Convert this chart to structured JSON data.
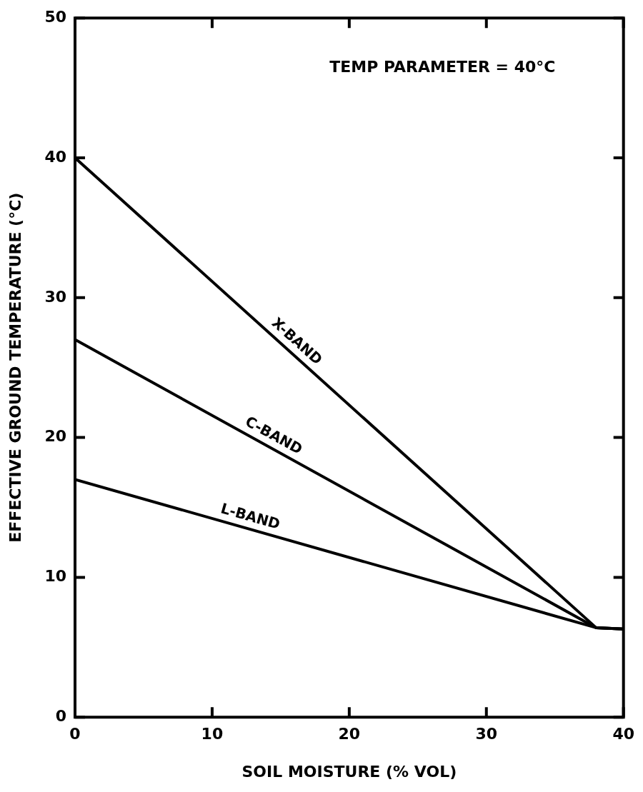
{
  "chart_data": {
    "type": "line",
    "xlabel": "SOIL MOISTURE (% VOL)",
    "ylabel": "EFFECTIVE GROUND TEMPERATURE (°C)",
    "annotations": [
      "TEMP PARAMETER = 40°C"
    ],
    "x": [
      0,
      38,
      40
    ],
    "series": [
      {
        "name": "X-BAND",
        "color": "#000000",
        "values": [
          40,
          6.4,
          6.3
        ]
      },
      {
        "name": "C-BAND",
        "color": "#000000",
        "values": [
          27,
          6.4,
          6.3
        ]
      },
      {
        "name": "L-BAND",
        "color": "#000000",
        "values": [
          17,
          6.4,
          6.3
        ]
      }
    ],
    "xlim": [
      0,
      40
    ],
    "xticks": [
      0,
      10,
      20,
      30,
      40
    ],
    "ylim": [
      0,
      50
    ],
    "yticks": [
      0,
      10,
      20,
      30,
      40,
      50
    ],
    "grid": false,
    "legend": false,
    "marker": "none",
    "line_style": "solid"
  }
}
